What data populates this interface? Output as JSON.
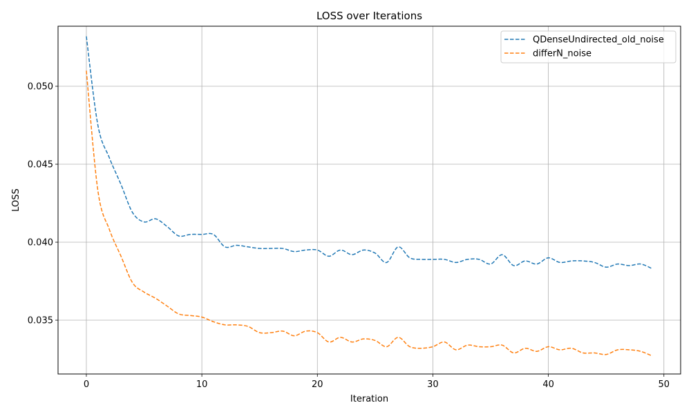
{
  "chart_data": {
    "type": "line",
    "title": "LOSS over Iterations",
    "xlabel": "Iteration",
    "ylabel": "LOSS",
    "xlim": [
      -2.45,
      51.45
    ],
    "ylim": [
      0.03155,
      0.05385
    ],
    "xticks": [
      0,
      10,
      20,
      30,
      40,
      50
    ],
    "xtick_labels": [
      "0",
      "10",
      "20",
      "30",
      "40",
      "50"
    ],
    "yticks": [
      0.035,
      0.04,
      0.045,
      0.05
    ],
    "ytick_labels": [
      "0.035",
      "0.040",
      "0.045",
      "0.050"
    ],
    "grid": true,
    "legend_position": "top-right",
    "x": [
      0,
      1,
      2,
      3,
      4,
      5,
      6,
      7,
      8,
      9,
      10,
      11,
      12,
      13,
      14,
      15,
      16,
      17,
      18,
      19,
      20,
      21,
      22,
      23,
      24,
      25,
      26,
      27,
      28,
      29,
      30,
      31,
      32,
      33,
      34,
      35,
      36,
      37,
      38,
      39,
      40,
      41,
      42,
      43,
      44,
      45,
      46,
      47,
      48,
      49
    ],
    "series": [
      {
        "name": "QDenseUndirected_old_noise",
        "color": "#1f77b4",
        "style": "dashed",
        "values": [
          0.0532,
          0.0475,
          0.0454,
          0.0437,
          0.0419,
          0.0413,
          0.0415,
          0.041,
          0.0404,
          0.0405,
          0.0405,
          0.0405,
          0.0397,
          0.0398,
          0.0397,
          0.0396,
          0.0396,
          0.0396,
          0.0394,
          0.0395,
          0.0395,
          0.0391,
          0.0395,
          0.0392,
          0.0395,
          0.0393,
          0.0387,
          0.0397,
          0.039,
          0.0389,
          0.0389,
          0.0389,
          0.0387,
          0.0389,
          0.0389,
          0.0386,
          0.0392,
          0.0385,
          0.0388,
          0.0386,
          0.039,
          0.0387,
          0.0388,
          0.0388,
          0.0387,
          0.0384,
          0.0386,
          0.0385,
          0.0386,
          0.0383
        ]
      },
      {
        "name": "differN_noise",
        "color": "#ff7f0e",
        "style": "dashed",
        "values": [
          0.051,
          0.0433,
          0.0408,
          0.0391,
          0.0374,
          0.0368,
          0.0364,
          0.0359,
          0.0354,
          0.0353,
          0.0352,
          0.0349,
          0.0347,
          0.0347,
          0.0346,
          0.0342,
          0.0342,
          0.0343,
          0.034,
          0.0343,
          0.0342,
          0.0336,
          0.0339,
          0.0336,
          0.0338,
          0.0337,
          0.0333,
          0.0339,
          0.0333,
          0.0332,
          0.0333,
          0.0336,
          0.0331,
          0.0334,
          0.0333,
          0.0333,
          0.0334,
          0.0329,
          0.0332,
          0.033,
          0.0333,
          0.0331,
          0.0332,
          0.0329,
          0.0329,
          0.0328,
          0.0331,
          0.0331,
          0.033,
          0.0327
        ]
      }
    ]
  }
}
